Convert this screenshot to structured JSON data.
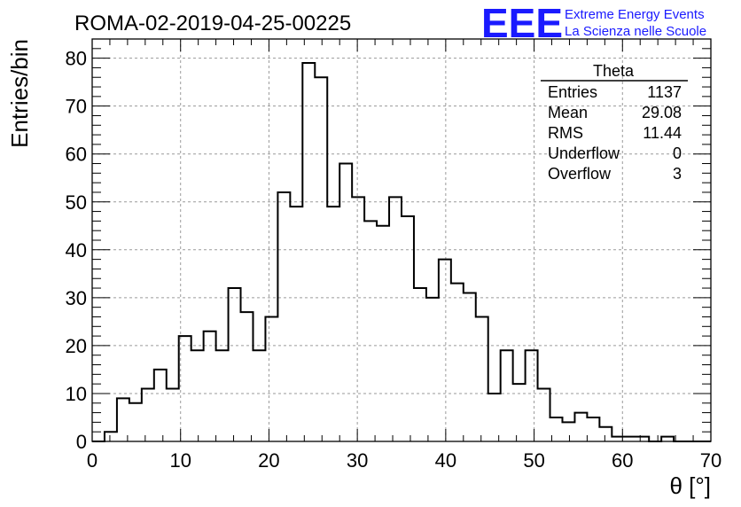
{
  "header": {
    "title": "ROMA-02-2019-04-25-00225",
    "logo_text": "EEE",
    "logo_line1": "Extreme Energy Events",
    "logo_line2": "La Scienza nelle Scuole",
    "logo_color": "#1a1aff"
  },
  "stats_box": {
    "title": "Theta",
    "rows": [
      {
        "label": "Entries",
        "value": "1137"
      },
      {
        "label": "Mean",
        "value": "29.08"
      },
      {
        "label": "RMS",
        "value": "11.44"
      },
      {
        "label": "Underflow",
        "value": "0"
      },
      {
        "label": "Overflow",
        "value": "3"
      }
    ]
  },
  "chart_data": {
    "type": "histogram",
    "xlabel": "θ [°]",
    "ylabel": "Entries/bin",
    "xlim": [
      0,
      70
    ],
    "ylim": [
      0,
      84
    ],
    "x_ticks": [
      0,
      10,
      20,
      30,
      40,
      50,
      60,
      70
    ],
    "y_ticks": [
      0,
      10,
      20,
      30,
      40,
      50,
      60,
      70,
      80
    ],
    "grid": true,
    "bin_width": 1.4,
    "bin_start": 0,
    "counts": [
      0,
      2,
      9,
      8,
      11,
      15,
      11,
      22,
      19,
      23,
      19,
      32,
      27,
      19,
      26,
      52,
      49,
      79,
      76,
      49,
      58,
      51,
      46,
      45,
      51,
      47,
      32,
      30,
      38,
      33,
      31,
      26,
      10,
      19,
      12,
      19,
      11,
      5,
      4,
      6,
      5,
      3,
      1,
      1,
      1,
      0,
      1,
      0,
      0,
      0
    ]
  }
}
